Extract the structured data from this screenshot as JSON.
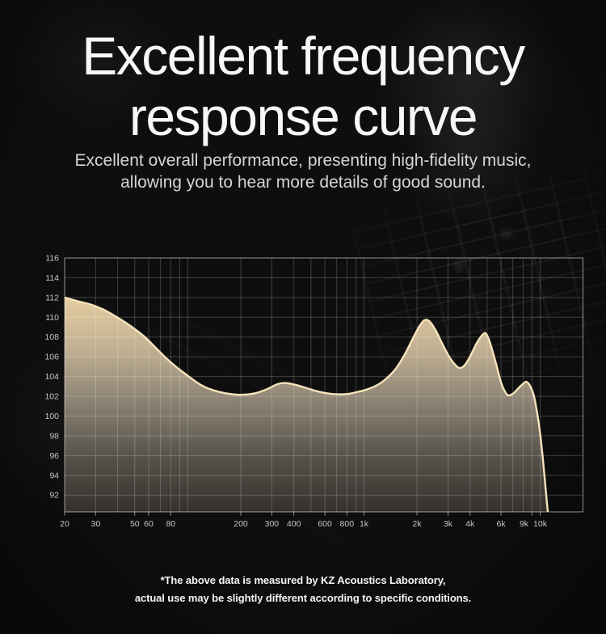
{
  "header": {
    "title_line1": "Excellent frequency",
    "title_line2": "response curve",
    "subtitle_line1": "Excellent overall performance, presenting high-fidelity music,",
    "subtitle_line2": "allowing you to hear more details of good sound."
  },
  "footer": {
    "line1": "*The above data is measured by KZ Acoustics Laboratory,",
    "line2": "actual use may be slightly different according to specific conditions."
  },
  "chart_data": {
    "type": "area",
    "title": "",
    "x_axis": {
      "scale": "log",
      "min": 20,
      "max": 17500,
      "tick_labels": [
        "20",
        "30",
        "50",
        "60",
        "80",
        "200",
        "300",
        "400",
        "600",
        "800",
        "1k",
        "2k",
        "3k",
        "4k",
        "6k",
        "9k",
        "10k"
      ],
      "tick_freqs": [
        20,
        30,
        50,
        60,
        80,
        200,
        300,
        400,
        600,
        800,
        1000,
        2000,
        3000,
        4000,
        6000,
        9000,
        10000
      ],
      "grid_freqs": [
        30,
        40,
        50,
        60,
        70,
        80,
        90,
        100,
        200,
        300,
        400,
        500,
        600,
        700,
        800,
        900,
        1000,
        2000,
        3000,
        4000,
        5000,
        6000,
        7000,
        8000,
        9000,
        10000
      ]
    },
    "y_axis": {
      "min": 90.3,
      "max": 116,
      "tick_values": [
        116,
        114,
        112,
        110,
        108,
        106,
        104,
        102,
        100,
        98,
        96,
        94,
        92
      ]
    },
    "series": [
      {
        "name": "frequency-response-db",
        "points": [
          [
            20,
            112.0
          ],
          [
            24,
            111.6
          ],
          [
            28,
            111.3
          ],
          [
            33,
            110.8
          ],
          [
            38,
            110.2
          ],
          [
            44,
            109.5
          ],
          [
            50,
            108.8
          ],
          [
            57,
            108.0
          ],
          [
            65,
            107.0
          ],
          [
            74,
            106.0
          ],
          [
            83,
            105.2
          ],
          [
            93,
            104.5
          ],
          [
            105,
            103.8
          ],
          [
            120,
            103.1
          ],
          [
            140,
            102.6
          ],
          [
            165,
            102.3
          ],
          [
            200,
            102.15
          ],
          [
            240,
            102.3
          ],
          [
            280,
            102.7
          ],
          [
            320,
            103.2
          ],
          [
            355,
            103.35
          ],
          [
            400,
            103.2
          ],
          [
            460,
            102.9
          ],
          [
            530,
            102.55
          ],
          [
            620,
            102.3
          ],
          [
            720,
            102.2
          ],
          [
            820,
            102.25
          ],
          [
            920,
            102.45
          ],
          [
            1000,
            102.6
          ],
          [
            1150,
            103.0
          ],
          [
            1300,
            103.6
          ],
          [
            1500,
            104.7
          ],
          [
            1700,
            106.2
          ],
          [
            1900,
            107.9
          ],
          [
            2050,
            109.0
          ],
          [
            2200,
            109.7
          ],
          [
            2350,
            109.6
          ],
          [
            2550,
            108.7
          ],
          [
            2750,
            107.5
          ],
          [
            3000,
            106.2
          ],
          [
            3250,
            105.3
          ],
          [
            3500,
            104.85
          ],
          [
            3750,
            105.2
          ],
          [
            4050,
            106.2
          ],
          [
            4400,
            107.5
          ],
          [
            4750,
            108.3
          ],
          [
            4950,
            108.3
          ],
          [
            5200,
            107.4
          ],
          [
            5600,
            105.4
          ],
          [
            6000,
            103.4
          ],
          [
            6400,
            102.3
          ],
          [
            6700,
            102.1
          ],
          [
            7100,
            102.35
          ],
          [
            7600,
            102.9
          ],
          [
            8100,
            103.35
          ],
          [
            8400,
            103.45
          ],
          [
            8800,
            103.0
          ],
          [
            9200,
            102.1
          ],
          [
            9600,
            100.4
          ],
          [
            10000,
            98.2
          ],
          [
            10400,
            95.4
          ],
          [
            10800,
            92.2
          ],
          [
            11200,
            89.2
          ],
          [
            11500,
            86.5
          ]
        ]
      }
    ],
    "grid": true,
    "legend": "none",
    "colors": {
      "curve": "#f6e3bb",
      "fill_top": "#f1d8ab",
      "fill_upper": "#e7cda1",
      "fill_mid": "#c3b294",
      "fill_lower": "#8f8676",
      "fill_deep": "#57534b",
      "fill_bottom": "#34312c",
      "grid": "rgba(255,255,255,0.20)",
      "frame": "rgba(255,255,255,0.55)",
      "tick_text": "#c6c6c6"
    }
  }
}
